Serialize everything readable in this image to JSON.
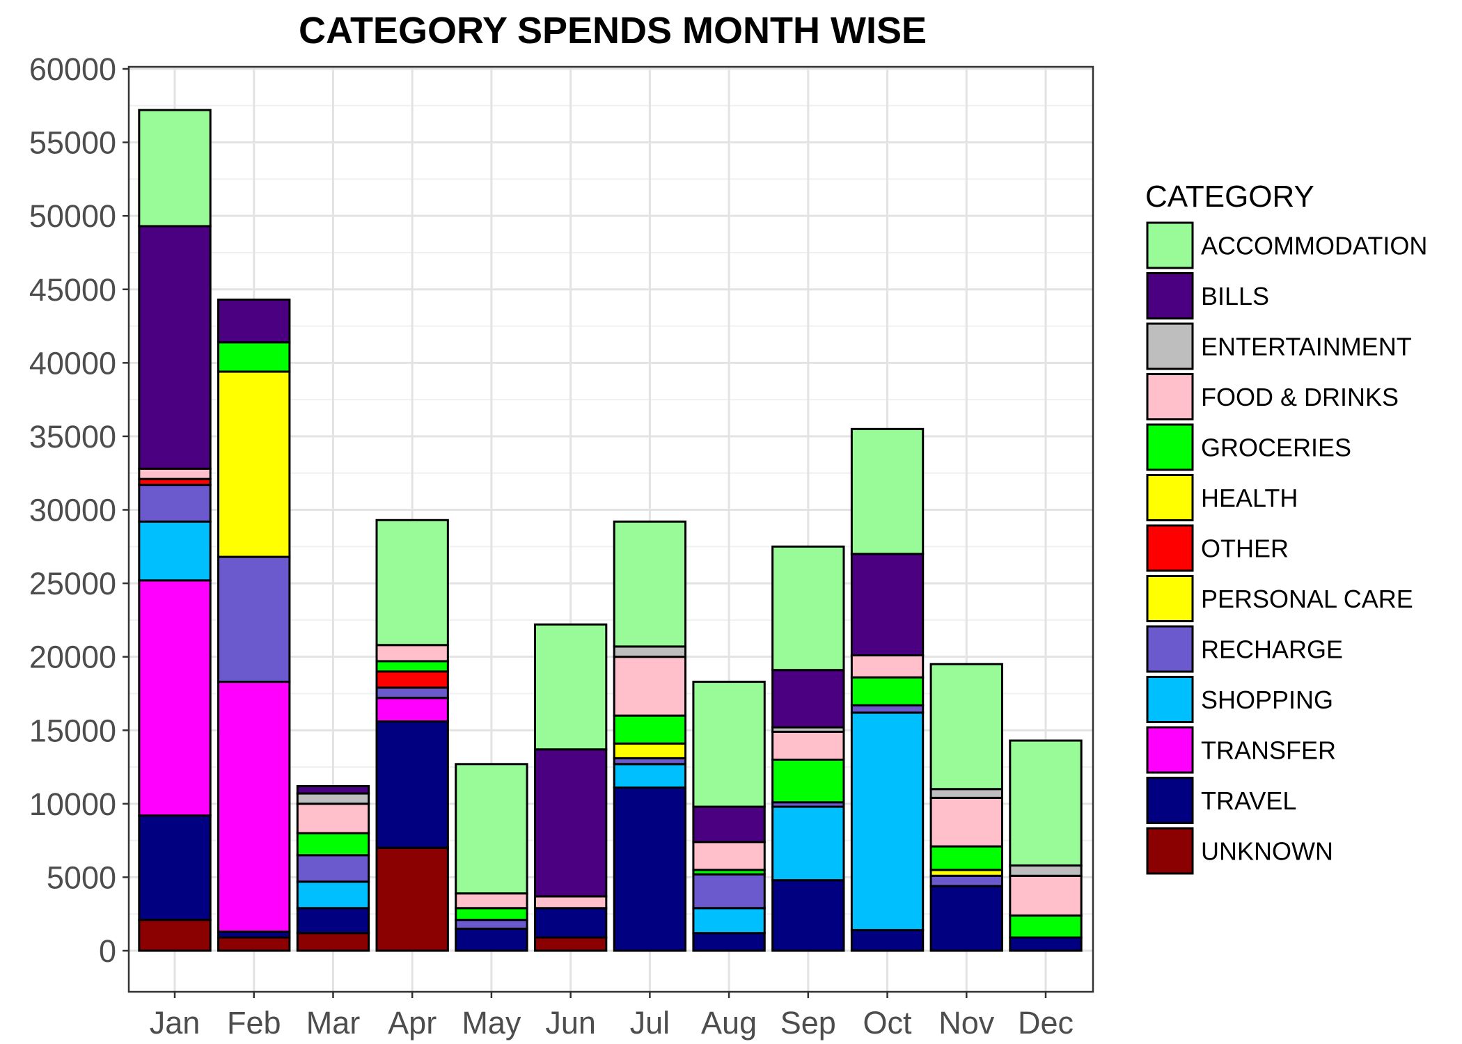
{
  "chart_data": {
    "type": "bar",
    "stacked": true,
    "title": "CATEGORY SPENDS MONTH WISE",
    "xlabel": "",
    "ylabel": "",
    "ylim": [
      -2700,
      60000
    ],
    "y_ticks": [
      0,
      5000,
      10000,
      15000,
      20000,
      25000,
      30000,
      35000,
      40000,
      45000,
      50000,
      55000,
      60000
    ],
    "y_tick_labels": [
      "0",
      "5000",
      "10000",
      "15000",
      "20000",
      "25000",
      "30000",
      "35000",
      "40000",
      "45000",
      "50000",
      "55000",
      "60000"
    ],
    "grid": true,
    "legend_position": "right",
    "legend_title": "CATEGORY",
    "categories": [
      "Jan",
      "Feb",
      "Mar",
      "Apr",
      "May",
      "Jun",
      "Jul",
      "Aug",
      "Sep",
      "Oct",
      "Nov",
      "Dec"
    ],
    "series": [
      {
        "name": "UNKNOWN",
        "color": "#8B0000",
        "values": [
          2100,
          900,
          1200,
          7000,
          0,
          900,
          0,
          0,
          0,
          0,
          0,
          0
        ]
      },
      {
        "name": "TRAVEL",
        "color": "#000080",
        "values": [
          7100,
          400,
          1700,
          8600,
          1500,
          2000,
          11100,
          1200,
          4800,
          1400,
          4400,
          900
        ]
      },
      {
        "name": "TRANSFER",
        "color": "#FF00FF",
        "values": [
          16000,
          17000,
          0,
          1600,
          0,
          0,
          0,
          0,
          0,
          0,
          0,
          0
        ]
      },
      {
        "name": "SHOPPING",
        "color": "#00BFFF",
        "values": [
          4000,
          0,
          1800,
          0,
          0,
          0,
          1600,
          1700,
          5000,
          14800,
          0,
          0
        ]
      },
      {
        "name": "RECHARGE",
        "color": "#6A5ACD",
        "values": [
          2500,
          8500,
          1800,
          700,
          600,
          0,
          400,
          2300,
          300,
          500,
          700,
          0
        ]
      },
      {
        "name": "PERSONAL CARE",
        "color": "#FFFF00",
        "values": [
          0,
          0,
          0,
          0,
          0,
          0,
          1000,
          0,
          0,
          0,
          400,
          0
        ]
      },
      {
        "name": "OTHER",
        "color": "#FF0000",
        "values": [
          400,
          0,
          0,
          1100,
          0,
          0,
          0,
          0,
          0,
          0,
          0,
          0
        ]
      },
      {
        "name": "HEALTH",
        "color": "#FFFF00",
        "values": [
          0,
          12600,
          0,
          0,
          0,
          0,
          0,
          0,
          0,
          0,
          0,
          0
        ]
      },
      {
        "name": "GROCERIES",
        "color": "#00FF00",
        "values": [
          0,
          2000,
          1500,
          700,
          800,
          0,
          1900,
          300,
          2900,
          1900,
          1600,
          1500
        ]
      },
      {
        "name": "FOOD & DRINKS",
        "color": "#FFC0CB",
        "values": [
          700,
          0,
          2000,
          1100,
          1000,
          800,
          4000,
          1900,
          1900,
          1500,
          3300,
          2700
        ]
      },
      {
        "name": "ENTERTAINMENT",
        "color": "#BEBEBE",
        "values": [
          0,
          0,
          700,
          0,
          0,
          0,
          700,
          0,
          300,
          0,
          600,
          700
        ]
      },
      {
        "name": "BILLS",
        "color": "#4B0082",
        "values": [
          16500,
          2900,
          500,
          0,
          0,
          10000,
          0,
          2400,
          3900,
          6900,
          0,
          0
        ]
      },
      {
        "name": "ACCOMMODATION",
        "color": "#98FB98",
        "values": [
          7900,
          0,
          0,
          8500,
          8800,
          8500,
          8500,
          8500,
          8400,
          8500,
          8500,
          8500
        ]
      }
    ],
    "legend_entries": [
      {
        "name": "ACCOMMODATION",
        "color": "#98FB98"
      },
      {
        "name": "BILLS",
        "color": "#4B0082"
      },
      {
        "name": "ENTERTAINMENT",
        "color": "#BEBEBE"
      },
      {
        "name": "FOOD & DRINKS",
        "color": "#FFC0CB"
      },
      {
        "name": "GROCERIES",
        "color": "#00FF00"
      },
      {
        "name": "HEALTH",
        "color": "#FFFF00"
      },
      {
        "name": "OTHER",
        "color": "#FF0000"
      },
      {
        "name": "PERSONAL CARE",
        "color": "#FFFF00"
      },
      {
        "name": "RECHARGE",
        "color": "#6A5ACD"
      },
      {
        "name": "SHOPPING",
        "color": "#00BFFF"
      },
      {
        "name": "TRANSFER",
        "color": "#FF00FF"
      },
      {
        "name": "TRAVEL",
        "color": "#000080"
      },
      {
        "name": "UNKNOWN",
        "color": "#8B0000"
      }
    ]
  }
}
